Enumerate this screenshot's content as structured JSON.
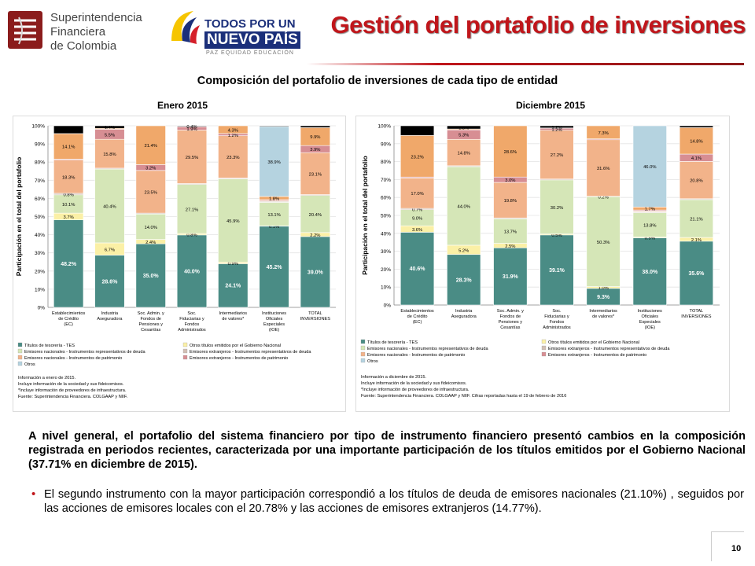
{
  "header": {
    "org_logo_lines": [
      "Superintendencia",
      "Financiera",
      "de Colombia"
    ],
    "gov_logo_line1": "TODOS POR UN",
    "gov_logo_line2": "NUEVO PAÍS",
    "gov_logo_line3": "PAZ EQUIDAD EDUCACIÓN",
    "title": "Gestión del portafolio de inversiones"
  },
  "subtitle": "Composición del portafolio de inversiones de cada tipo de entidad",
  "periods": {
    "left": "Enero 2015",
    "right": "Diciembre 2015"
  },
  "colors": {
    "accent_red": "#c0161b",
    "series": [
      "#4a8c85",
      "#fbf0a6",
      "#d5e6b7",
      "#d1bfb4",
      "#f2b38a",
      "#d78e93",
      "#f0a86a",
      "#b5d3e0"
    ]
  },
  "chart_data": [
    {
      "type": "bar",
      "stacked": true,
      "period": "Enero 2015",
      "ylabel": "Participación en el total del portafolio",
      "ylim": [
        0,
        100
      ],
      "yticks": [
        "0%",
        "10%",
        "20%",
        "30%",
        "40%",
        "50%",
        "60%",
        "70%",
        "80%",
        "90%",
        "100%"
      ],
      "categories": [
        "Establecimientos de Crédito (EC)",
        "Industria Aseguradora",
        "Soc. Admin. y Fondos de Pensiones y Cesantías",
        "Soc. Fiduciarias y Fondos Administrados",
        "Intermediarios de valores*",
        "Instituciones Oficiales Especiales (IOE)",
        "TOTAL INVERSIONES"
      ],
      "series": [
        {
          "name": "Títulos de tesorería - TES",
          "values": [
            48.2,
            28.6,
            35.0,
            40.0,
            24.1,
            45.2,
            39.0
          ],
          "labels": [
            "48.2%",
            "28.6%",
            "35.0%",
            "40.0%",
            "24.1%",
            "45.2%",
            "39.0%"
          ]
        },
        {
          "name": "Otros títulos emitidos por el Gobierno Nacional",
          "values": [
            3.7,
            6.7,
            2.4,
            0.8,
            0.9,
            0.1,
            2.2
          ],
          "labels": [
            "3.7%",
            "6.7%",
            "2.4%",
            "0.8%",
            "0.9%",
            "0.1%",
            "2.2%"
          ]
        },
        {
          "name": "Emisores nacionales - Instrumentos representativos de deuda",
          "values": [
            10.1,
            40.4,
            14.0,
            27.1,
            45.9,
            13.1,
            20.4
          ],
          "labels": [
            "10.1%",
            "40.4%",
            "14.0%",
            "27.1%",
            "45.9%",
            "13.1%",
            "20.4%"
          ]
        },
        {
          "name": "Emisores extranjeros - Instrumentos representativos de deuda",
          "values": [
            0.8,
            0.5,
            0.5,
            0.5,
            0.5,
            0.5,
            0.5
          ],
          "labels": [
            "0.8%",
            "",
            "",
            "",
            "",
            "",
            ""
          ]
        },
        {
          "name": "Emisores nacionales - Instrumentos de patrimonio",
          "values": [
            18.3,
            15.8,
            23.5,
            29.5,
            23.3,
            0.5,
            23.1
          ],
          "labels": [
            "18.3%",
            "15.8%",
            "23.5%",
            "29.5%",
            "23.3%",
            "",
            "23.1%"
          ]
        },
        {
          "name": "Emisores extranjeros - Instrumentos de patrimonio",
          "values": [
            0.5,
            5.5,
            3.2,
            1.9,
            1.2,
            0.5,
            3.9
          ],
          "labels": [
            "",
            "5.5%",
            "3.2%",
            "1.9%",
            "1.2%",
            "",
            "3.9%"
          ]
        },
        {
          "name": "Emisores extranjeros - Instrumentos representativos de deuda (2)",
          "values": [
            14.1,
            0.5,
            21.4,
            0.1,
            4.3,
            1.8,
            9.9
          ],
          "labels": [
            "14.1%",
            "",
            "21.4%",
            "",
            "4.3%",
            "1.8%",
            "9.9%"
          ]
        },
        {
          "name": "Emisores extranjeros - Instrumentos de patrimonio (2)",
          "values": [
            0,
            0,
            0,
            0,
            0,
            38.9,
            0
          ],
          "labels": [
            "",
            "",
            "",
            "",
            "",
            "38.9%",
            ""
          ]
        },
        {
          "name": "Otros",
          "values": [
            4.3,
            1.4,
            0.0,
            0.4,
            0.0,
            0.4,
            1.0
          ],
          "labels": [
            "",
            "1.4%",
            "",
            "0.4%",
            "",
            "",
            ""
          ]
        }
      ],
      "legend": [
        "Títulos de tesorería - TES",
        "Otros títulos emitidos por el Gobierno Nacional",
        "Emisores nacionales - Instrumentos representativos de deuda",
        "Emisores extranjeros - Instrumentos representativos de deuda",
        "Emisores nacionales - Instrumentos de patrimonio",
        "Emisores extranjeros - Instrumentos de patrimonio",
        "Otros"
      ],
      "notes": [
        "Información a enero de 2015.",
        "Incluye información de la sociedad y sus fideicomisos.",
        "*Incluye información de proveedores de infraestructura.",
        "Fuente: Superintendencia Financiera. COLGAAP y NIIF."
      ]
    },
    {
      "type": "bar",
      "stacked": true,
      "period": "Diciembre 2015",
      "ylabel": "Participación en el total del portafolio",
      "ylim": [
        0,
        100
      ],
      "yticks": [
        "0%",
        "10%",
        "20%",
        "30%",
        "40%",
        "50%",
        "60%",
        "70%",
        "80%",
        "90%",
        "100%"
      ],
      "categories": [
        "Establecimientos de Crédito (EC)",
        "Industria Aseguradora",
        "Soc. Admin. y Fondos de Pensiones y Cesantías",
        "Soc. Fiduciarias y Fondos Administrados",
        "Intermediarios de valores*",
        "Instituciones Oficiales Especiales (IOE)",
        "TOTAL INVERSIONES"
      ],
      "series": [
        {
          "name": "Títulos de tesorería - TES",
          "values": [
            40.6,
            28.3,
            31.9,
            39.1,
            9.3,
            38.0,
            35.6
          ],
          "labels": [
            "40.6%",
            "28.3%",
            "31.9%",
            "39.1%",
            "9.3%",
            "38.0%",
            "35.6%"
          ]
        },
        {
          "name": "Otros títulos emitidos por el Gobierno Nacional",
          "values": [
            3.6,
            5.2,
            2.5,
            0.5,
            1.0,
            0.5,
            2.1
          ],
          "labels": [
            "3.6%",
            "5.2%",
            "2.5%",
            "0.5%",
            "1.0%",
            "0.5%",
            "2.1%"
          ]
        },
        {
          "name": "Emisores nacionales - Instrumentos representativos de deuda",
          "values": [
            9.0,
            44.0,
            13.7,
            30.2,
            50.3,
            13.8,
            21.1
          ],
          "labels": [
            "9.0%",
            "44.0%",
            "13.7%",
            "30.2%",
            "50.3%",
            "13.8%",
            "21.1%"
          ]
        },
        {
          "name": "Emisores extranjeros - Instrumentos representativos de deuda",
          "values": [
            0.7,
            0.5,
            0.5,
            0.5,
            0.2,
            0.5,
            0.5
          ],
          "labels": [
            "0.7%",
            "",
            "",
            "",
            "0.2%",
            "",
            ""
          ]
        },
        {
          "name": "Emisores nacionales - Instrumentos de patrimonio",
          "values": [
            17.0,
            14.8,
            19.8,
            27.2,
            31.6,
            0.5,
            20.8
          ],
          "labels": [
            "17.0%",
            "14.8%",
            "19.8%",
            "27.2%",
            "31.6%",
            "",
            "20.8%"
          ]
        },
        {
          "name": "Emisores extranjeros - Instrumentos de patrimonio",
          "values": [
            0.5,
            5.3,
            3.0,
            1.2,
            0.5,
            0.5,
            4.1
          ],
          "labels": [
            "",
            "5.3%",
            "3.0%",
            "1.2%",
            "",
            "",
            "4.1%"
          ]
        },
        {
          "name": "Emisores extranjeros - Instrumentos representativos de deuda (2)",
          "values": [
            23.2,
            0.5,
            28.6,
            0.1,
            7.3,
            1.7,
            14.8
          ],
          "labels": [
            "23.2%",
            "",
            "28.6%",
            "",
            "7.3%",
            "1.7%",
            "14.8%"
          ]
        },
        {
          "name": "Emisores extranjeros - Instrumentos de patrimonio (2)",
          "values": [
            0,
            0,
            0,
            0,
            0,
            46.0,
            0
          ],
          "labels": [
            "",
            "",
            "",
            "",
            "",
            "46.0%",
            ""
          ]
        },
        {
          "name": "Otros",
          "values": [
            5.4,
            1.8,
            0.0,
            1.2,
            0.0,
            0.0,
            1.0
          ],
          "labels": [
            "",
            "1.8%",
            "",
            "1.2%",
            "",
            "",
            ""
          ]
        }
      ],
      "legend": [
        "Títulos de tesorería - TES",
        "Otros títulos emitidos por el Gobierno Nacional",
        "Emisores nacionales - Instrumentos representativos de deuda",
        "Emisores extranjeros - Instrumentos representativos de deuda",
        "Emisores nacionales - Instrumentos de patrimonio",
        "Emisores extranjeros - Instrumentos de patrimonio",
        "Otros"
      ],
      "notes": [
        "Información a diciembre de 2015.",
        "Incluye información de la sociedad y sus fideicomisos.",
        "*Incluye información de proveedores de infraestructura.",
        "Fuente: Superintendencia Financiera. COLGAAP y NIIF. Cifras reportadas hasta el 19 de febrero de 2016"
      ]
    }
  ],
  "body": {
    "paragraph": "A nivel general, el portafolio del sistema financiero por tipo de instrumento financiero presentó cambios en la composición registrada en periodos recientes, caracterizada por una importante participación de los títulos emitidos por el Gobierno Nacional (37.71% en diciembre de 2015).",
    "bullet": "El segundo instrumento con la mayor participación correspondió a los títulos de deuda de emisores nacionales (21.10%) , seguidos por las acciones de emisores locales con el 20.78%  y las acciones de emisores extranjeros (14.77%).",
    "bullet_marker": "•"
  },
  "page_number": "10"
}
